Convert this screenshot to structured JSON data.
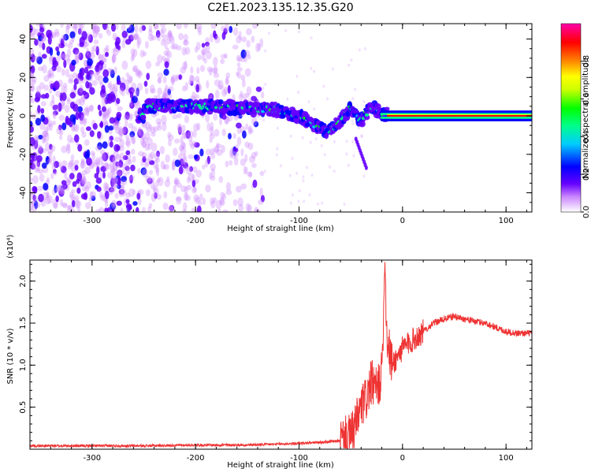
{
  "title": "C2E1.2023.135.12.35.G20",
  "colors": {
    "snr_line": "#ee3333",
    "axis": "#000000",
    "background": "#ffffff"
  },
  "chart_data": [
    {
      "type": "heatmap",
      "title": "",
      "xlabel": "Height of straight line (km)",
      "ylabel": "Frequency (Hz)",
      "xlim": [
        -360,
        125
      ],
      "ylim": [
        -50,
        48
      ],
      "x_ticks": [
        -300,
        -200,
        -100,
        0,
        100
      ],
      "y_ticks": [
        -40,
        -20,
        0,
        20,
        40
      ],
      "grid": false,
      "colorbar": {
        "label": "Normalized spectral amplitude",
        "range": [
          0.0,
          1.0
        ],
        "ticks": [
          0.0,
          0.2,
          0.4,
          0.6,
          0.8
        ],
        "colormap": [
          "#ffffff",
          "#cc88ff",
          "#6600ff",
          "#0000ff",
          "#00ccff",
          "#00ff88",
          "#00ff00",
          "#ccff00",
          "#ffff00",
          "#ff8800",
          "#ff0000",
          "#ff00aa"
        ]
      },
      "ridge": {
        "description_points_x": [
          -250,
          -200,
          -150,
          -120,
          -100,
          -80,
          -70,
          -60,
          -50,
          -40,
          -30,
          -20,
          0,
          50,
          125
        ],
        "description_points_y": [
          5,
          5,
          4,
          3,
          0,
          -6,
          -8,
          -2,
          4,
          -2,
          5,
          1,
          0,
          0,
          0
        ],
        "branch_x": [
          -45,
          -40,
          -35
        ],
        "branch_y": [
          -12,
          -18,
          -27
        ]
      }
    },
    {
      "type": "line",
      "title": "",
      "xlabel": "Height of straight line (km)",
      "ylabel": "SNR (10 * v/v)",
      "y_multiplier_label": "(x10⁴)",
      "xlim": [
        -360,
        125
      ],
      "ylim": [
        0,
        2.25
      ],
      "x_ticks": [
        -300,
        -200,
        -100,
        0,
        100
      ],
      "y_ticks": [
        0.5,
        1.0,
        1.5,
        2.0
      ],
      "grid": false,
      "series": [
        {
          "x": [
            -360,
            -300,
            -250,
            -200,
            -180,
            -150,
            -120,
            -100,
            -80,
            -60,
            -50,
            -45,
            -40,
            -35,
            -30,
            -25,
            -20,
            -17,
            -15,
            -10,
            0,
            10,
            20,
            30,
            40,
            50,
            60,
            70,
            80,
            90,
            100,
            110,
            125
          ],
          "values": [
            0.04,
            0.04,
            0.04,
            0.05,
            0.05,
            0.05,
            0.06,
            0.07,
            0.08,
            0.1,
            0.15,
            0.3,
            0.5,
            0.6,
            0.8,
            0.7,
            0.9,
            2.2,
            1.3,
            1.0,
            1.2,
            1.3,
            1.4,
            1.5,
            1.55,
            1.58,
            1.55,
            1.52,
            1.5,
            1.45,
            1.4,
            1.38,
            1.38
          ]
        }
      ]
    }
  ],
  "tick_labels": {
    "x": [
      "-300",
      "-200",
      "-100",
      "0",
      "100"
    ],
    "y_top": [
      "-40",
      "-20",
      "0",
      "20",
      "40"
    ],
    "y_bottom": [
      "0.5",
      "1.0",
      "1.5",
      "2.0"
    ],
    "colorbar": [
      "0.0",
      "0.2",
      "0.4",
      "0.6",
      "0.8"
    ]
  }
}
